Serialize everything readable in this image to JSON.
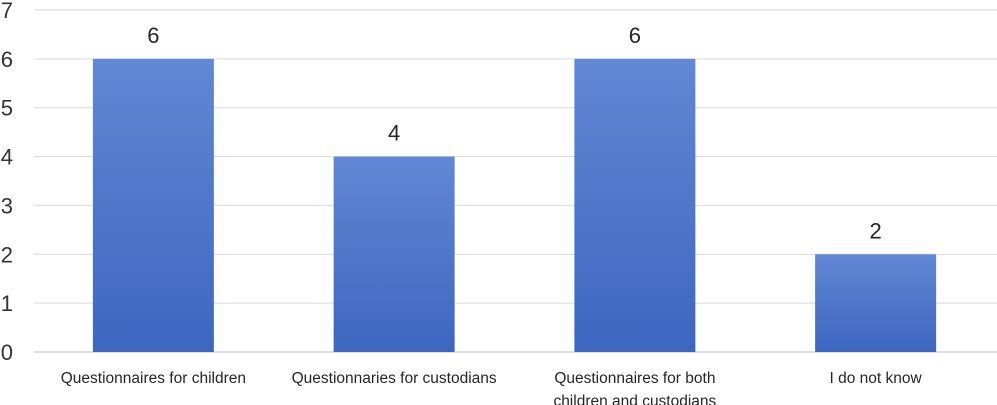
{
  "chart_data": {
    "type": "bar",
    "title": "",
    "xlabel": "",
    "ylabel": "",
    "categories": [
      [
        "Questionnaires for children"
      ],
      [
        "Questionnaries for custodians"
      ],
      [
        "Questionnaires for both",
        "children and custodians"
      ],
      [
        "I do not know"
      ]
    ],
    "values": [
      6,
      4,
      6,
      2
    ],
    "data_labels": [
      "6",
      "4",
      "6",
      "2"
    ],
    "y_ticks": [
      "0",
      "1",
      "2",
      "3",
      "4",
      "5",
      "6",
      "7"
    ],
    "ylim": [
      0,
      7
    ],
    "grid": true,
    "legend": "none",
    "colors": {
      "bar_top": "#6088d4",
      "bar_bottom": "#3d66c0",
      "grid": "#d9d9d9",
      "axis": "#bfbfbf"
    }
  }
}
